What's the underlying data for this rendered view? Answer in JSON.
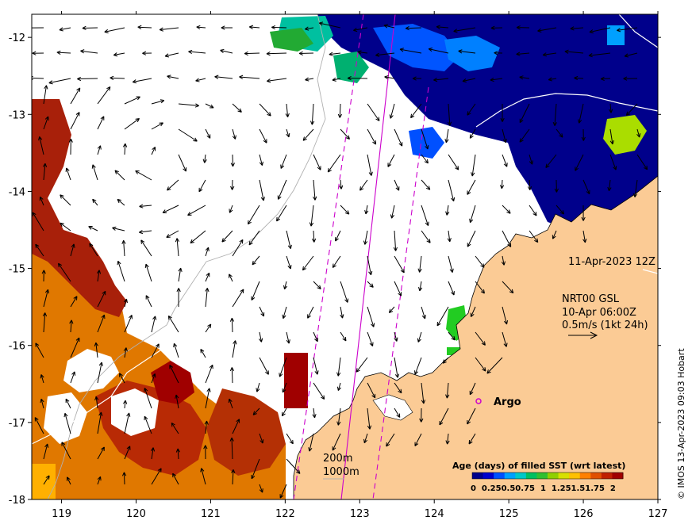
{
  "map": {
    "lon_range": [
      118.6,
      127
    ],
    "lat_range": [
      -18,
      -11.7
    ],
    "x_ticks": [
      "119",
      "120",
      "121",
      "122",
      "123",
      "124",
      "125",
      "126",
      "127"
    ],
    "y_ticks": [
      "-12",
      "-13",
      "-14",
      "-15",
      "-16",
      "-17",
      "-18"
    ],
    "colors": {
      "land": "#fbcb95",
      "fresh": "#00008b",
      "old": "#a50f15",
      "mid_old": "#e07000",
      "green": "#22bb22",
      "cyan": "#00c0a0",
      "yellow_green": "#aadd00",
      "track": "#cc00cc",
      "contour": "#aaaaaa",
      "arrow": "#000000"
    }
  },
  "annotations": {
    "datetime": "11-Apr-2023 12Z",
    "current_source": "NRT00 GSL",
    "current_time": "10-Apr 06:00Z",
    "scale_label": "0.5m/s (1kt 24h)",
    "argo_label": "Argo",
    "contour_200": "200m",
    "contour_1000": "1000m",
    "credit": "© IMOS 13-Apr-2023 09:03 Hobart"
  },
  "colorbar": {
    "title": "Age (days) of filled SST (wrt latest)",
    "labels": [
      "0",
      "0.25",
      "0.5",
      "0.75",
      "1",
      "1.25",
      "1.5",
      "1.75",
      "2"
    ],
    "label_line": "0  0.250.50.75  1  1.251.51.75  2",
    "colors": [
      "#00008b",
      "#0000cd",
      "#0050ff",
      "#00a0ff",
      "#00c8c8",
      "#00c060",
      "#30c030",
      "#90d000",
      "#d8e000",
      "#ffc000",
      "#ff8000",
      "#e05000",
      "#c02000",
      "#a00000"
    ]
  }
}
